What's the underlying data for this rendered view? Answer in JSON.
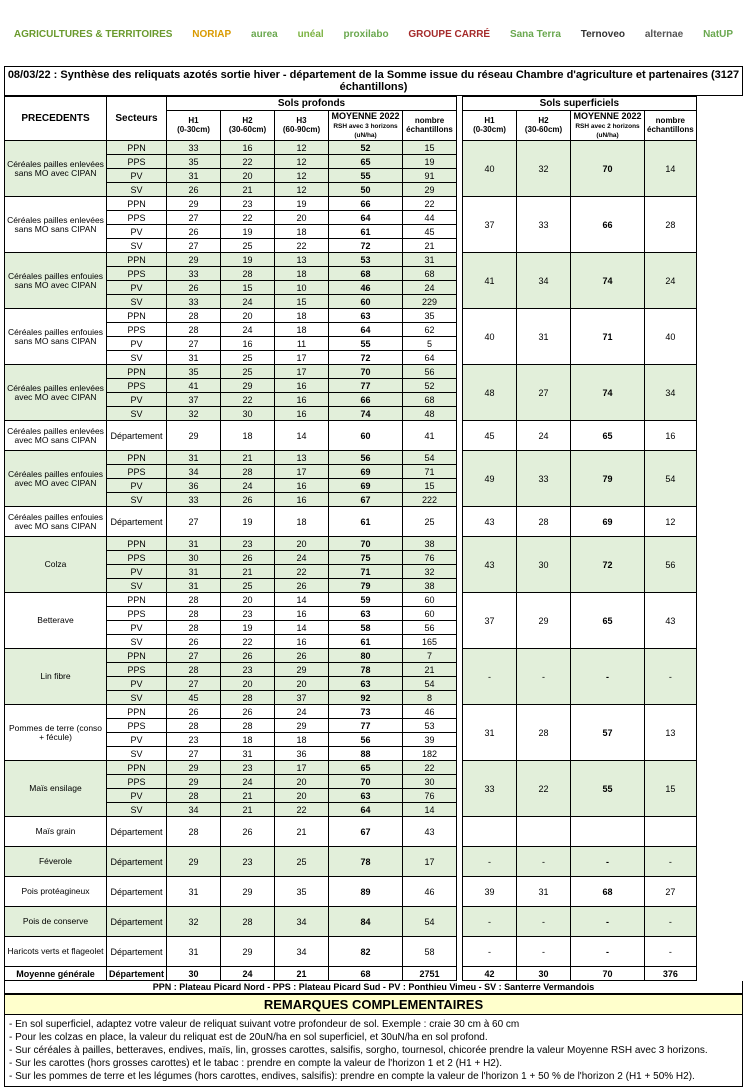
{
  "logos": [
    "AGRICULTURES & TERRITOIRES",
    "NORIAP",
    "aurea",
    "unéal",
    "proxilabo",
    "GROUPE CARRÉ",
    "Sana Terra",
    "Ternoveo",
    "alternae",
    "NatUP"
  ],
  "logo_colors": [
    "#6a9a2d",
    "#d99a00",
    "#6aa84f",
    "#7cb342",
    "#6aa84f",
    "#a52a2a",
    "#6aa84f",
    "#333",
    "#555",
    "#6aa84f"
  ],
  "title": "08/03/22 : Synthèse des reliquats azotés sortie hiver - département de la Somme issue du réseau Chambre d'agriculture et partenaires (3127 échantillons)",
  "headers": {
    "precedents": "PRECEDENTS",
    "secteurs": "Secteurs",
    "sols_profonds": "Sols profonds",
    "sols_superficiels": "Sols superficiels",
    "h1": "H1\n(0-30cm)",
    "h2": "H2\n(30-60cm)",
    "h3": "H3\n(60-90cm)",
    "moy3": "MOYENNE 2022",
    "moy3_sub": "RSH avec 3 horizons (uN/ha)",
    "moy2": "MOYENNE 2022",
    "moy2_sub": "RSH avec 2 horizons (uN/ha)",
    "nombre": "nombre échantillons"
  },
  "groups": [
    {
      "precedent": "Céréales pailles enlevées sans MO avec CIPAN",
      "shade": true,
      "rows": [
        {
          "s": "PPN",
          "h1": 33,
          "h2": 16,
          "h3": 12,
          "m": 52,
          "n": 15
        },
        {
          "s": "PPS",
          "h1": 35,
          "h2": 22,
          "h3": 12,
          "m": 65,
          "n": 19
        },
        {
          "s": "PV",
          "h1": 31,
          "h2": 20,
          "h3": 12,
          "m": 55,
          "n": 91
        },
        {
          "s": "SV",
          "h1": 26,
          "h2": 21,
          "h3": 12,
          "m": 50,
          "n": 29
        }
      ],
      "sup": {
        "h1": 40,
        "h2": 32,
        "m": 70,
        "n": 14
      }
    },
    {
      "precedent": "Céréales pailles enlevées sans MO sans CIPAN",
      "shade": false,
      "rows": [
        {
          "s": "PPN",
          "h1": 29,
          "h2": 23,
          "h3": 19,
          "m": 66,
          "n": 22
        },
        {
          "s": "PPS",
          "h1": 27,
          "h2": 22,
          "h3": 20,
          "m": 64,
          "n": 44
        },
        {
          "s": "PV",
          "h1": 26,
          "h2": 19,
          "h3": 18,
          "m": 61,
          "n": 45
        },
        {
          "s": "SV",
          "h1": 27,
          "h2": 25,
          "h3": 22,
          "m": 72,
          "n": 21
        }
      ],
      "sup": {
        "h1": 37,
        "h2": 33,
        "m": 66,
        "n": 28
      }
    },
    {
      "precedent": "Céréales pailles enfouies sans MO avec CIPAN",
      "shade": true,
      "rows": [
        {
          "s": "PPN",
          "h1": 29,
          "h2": 19,
          "h3": 13,
          "m": 53,
          "n": 31
        },
        {
          "s": "PPS",
          "h1": 33,
          "h2": 28,
          "h3": 18,
          "m": 68,
          "n": 68
        },
        {
          "s": "PV",
          "h1": 26,
          "h2": 15,
          "h3": 10,
          "m": 46,
          "n": 24
        },
        {
          "s": "SV",
          "h1": 33,
          "h2": 24,
          "h3": 15,
          "m": 60,
          "n": 229
        }
      ],
      "sup": {
        "h1": 41,
        "h2": 34,
        "m": 74,
        "n": 24
      }
    },
    {
      "precedent": "Céréales pailles enfouies sans MO sans CIPAN",
      "shade": false,
      "rows": [
        {
          "s": "PPN",
          "h1": 28,
          "h2": 20,
          "h3": 18,
          "m": 63,
          "n": 35
        },
        {
          "s": "PPS",
          "h1": 28,
          "h2": 24,
          "h3": 18,
          "m": 64,
          "n": 62
        },
        {
          "s": "PV",
          "h1": 27,
          "h2": 16,
          "h3": 11,
          "m": 55,
          "n": 5
        },
        {
          "s": "SV",
          "h1": 31,
          "h2": 25,
          "h3": 17,
          "m": 72,
          "n": 64
        }
      ],
      "sup": {
        "h1": 40,
        "h2": 31,
        "m": 71,
        "n": 40
      }
    },
    {
      "precedent": "Céréales pailles enlevées avec MO avec CIPAN",
      "shade": true,
      "rows": [
        {
          "s": "PPN",
          "h1": 35,
          "h2": 25,
          "h3": 17,
          "m": 70,
          "n": 56
        },
        {
          "s": "PPS",
          "h1": 41,
          "h2": 29,
          "h3": 16,
          "m": 77,
          "n": 52
        },
        {
          "s": "PV",
          "h1": 37,
          "h2": 22,
          "h3": 16,
          "m": 66,
          "n": 68
        },
        {
          "s": "SV",
          "h1": 32,
          "h2": 30,
          "h3": 16,
          "m": 74,
          "n": 48
        }
      ],
      "sup": {
        "h1": 48,
        "h2": 27,
        "m": 74,
        "n": 34
      }
    },
    {
      "precedent": "Céréales pailles enlevées avec MO sans CIPAN",
      "shade": false,
      "dept": true,
      "rows": [
        {
          "s": "Département",
          "h1": 29,
          "h2": 18,
          "h3": 14,
          "m": 60,
          "n": 41
        }
      ],
      "sup": {
        "h1": 45,
        "h2": 24,
        "m": 65,
        "n": 16
      }
    },
    {
      "precedent": "Céréales pailles enfouies avec MO avec CIPAN",
      "shade": true,
      "rows": [
        {
          "s": "PPN",
          "h1": 31,
          "h2": 21,
          "h3": 13,
          "m": 56,
          "n": 54
        },
        {
          "s": "PPS",
          "h1": 34,
          "h2": 28,
          "h3": 17,
          "m": 69,
          "n": 71
        },
        {
          "s": "PV",
          "h1": 36,
          "h2": 24,
          "h3": 16,
          "m": 69,
          "n": 15
        },
        {
          "s": "SV",
          "h1": 33,
          "h2": 26,
          "h3": 16,
          "m": 67,
          "n": 222
        }
      ],
      "sup": {
        "h1": 49,
        "h2": 33,
        "m": 79,
        "n": 54
      }
    },
    {
      "precedent": "Céréales pailles enfouies avec MO sans CIPAN",
      "shade": false,
      "dept": true,
      "rows": [
        {
          "s": "Département",
          "h1": 27,
          "h2": 19,
          "h3": 18,
          "m": 61,
          "n": 25
        }
      ],
      "sup": {
        "h1": 43,
        "h2": 28,
        "m": 69,
        "n": 12
      }
    },
    {
      "precedent": "Colza",
      "shade": true,
      "rows": [
        {
          "s": "PPN",
          "h1": 31,
          "h2": 23,
          "h3": 20,
          "m": 70,
          "n": 38
        },
        {
          "s": "PPS",
          "h1": 30,
          "h2": 26,
          "h3": 24,
          "m": 75,
          "n": 76
        },
        {
          "s": "PV",
          "h1": 31,
          "h2": 21,
          "h3": 22,
          "m": 71,
          "n": 32
        },
        {
          "s": "SV",
          "h1": 31,
          "h2": 25,
          "h3": 26,
          "m": 79,
          "n": 38
        }
      ],
      "sup": {
        "h1": 43,
        "h2": 30,
        "m": 72,
        "n": 56
      }
    },
    {
      "precedent": "Betterave",
      "shade": false,
      "rows": [
        {
          "s": "PPN",
          "h1": 28,
          "h2": 20,
          "h3": 14,
          "m": 59,
          "n": 60
        },
        {
          "s": "PPS",
          "h1": 28,
          "h2": 23,
          "h3": 16,
          "m": 63,
          "n": 60
        },
        {
          "s": "PV",
          "h1": 28,
          "h2": 19,
          "h3": 14,
          "m": 58,
          "n": 56
        },
        {
          "s": "SV",
          "h1": 26,
          "h2": 22,
          "h3": 16,
          "m": 61,
          "n": 165
        }
      ],
      "sup": {
        "h1": 37,
        "h2": 29,
        "m": 65,
        "n": 43
      }
    },
    {
      "precedent": "Lin fibre",
      "shade": true,
      "rows": [
        {
          "s": "PPN",
          "h1": 27,
          "h2": 26,
          "h3": 26,
          "m": 80,
          "n": 7
        },
        {
          "s": "PPS",
          "h1": 28,
          "h2": 23,
          "h3": 29,
          "m": 78,
          "n": 21
        },
        {
          "s": "PV",
          "h1": 27,
          "h2": 20,
          "h3": 20,
          "m": 63,
          "n": 54
        },
        {
          "s": "SV",
          "h1": 45,
          "h2": 28,
          "h3": 37,
          "m": 92,
          "n": 8
        }
      ],
      "sup": {
        "h1": "-",
        "h2": "-",
        "m": "-",
        "n": "-"
      }
    },
    {
      "precedent": "Pommes de terre (conso + fécule)",
      "shade": false,
      "rows": [
        {
          "s": "PPN",
          "h1": 26,
          "h2": 26,
          "h3": 24,
          "m": 73,
          "n": 46
        },
        {
          "s": "PPS",
          "h1": 28,
          "h2": 28,
          "h3": 29,
          "m": 77,
          "n": 53
        },
        {
          "s": "PV",
          "h1": 23,
          "h2": 18,
          "h3": 18,
          "m": 56,
          "n": 39
        },
        {
          "s": "SV",
          "h1": 27,
          "h2": 31,
          "h3": 36,
          "m": 88,
          "n": 182
        }
      ],
      "sup": {
        "h1": 31,
        "h2": 28,
        "m": 57,
        "n": 13
      }
    },
    {
      "precedent": "Maïs ensilage",
      "shade": true,
      "rows": [
        {
          "s": "PPN",
          "h1": 29,
          "h2": 23,
          "h3": 17,
          "m": 65,
          "n": 22
        },
        {
          "s": "PPS",
          "h1": 29,
          "h2": 24,
          "h3": 20,
          "m": 70,
          "n": 30
        },
        {
          "s": "PV",
          "h1": 28,
          "h2": 21,
          "h3": 20,
          "m": 63,
          "n": 76
        },
        {
          "s": "SV",
          "h1": 34,
          "h2": 21,
          "h3": 22,
          "m": 64,
          "n": 14
        }
      ],
      "sup": {
        "h1": 33,
        "h2": 22,
        "m": 55,
        "n": 15
      }
    },
    {
      "precedent": "Maïs grain",
      "shade": false,
      "dept": true,
      "rows": [
        {
          "s": "Département",
          "h1": 28,
          "h2": 26,
          "h3": 21,
          "m": 67,
          "n": 43
        }
      ],
      "sup": null
    },
    {
      "precedent": "Féverole",
      "shade": true,
      "dept": true,
      "rows": [
        {
          "s": "Département",
          "h1": 29,
          "h2": 23,
          "h3": 25,
          "m": 78,
          "n": 17
        }
      ],
      "sup": {
        "h1": "-",
        "h2": "-",
        "m": "-",
        "n": "-"
      }
    },
    {
      "precedent": "Pois protéagineux",
      "shade": false,
      "dept": true,
      "rows": [
        {
          "s": "Département",
          "h1": 31,
          "h2": 29,
          "h3": 35,
          "m": 89,
          "n": 46
        }
      ],
      "sup": {
        "h1": 39,
        "h2": 31,
        "m": 68,
        "n": 27
      }
    },
    {
      "precedent": "Pois de conserve",
      "shade": true,
      "dept": true,
      "rows": [
        {
          "s": "Département",
          "h1": 32,
          "h2": 28,
          "h3": 34,
          "m": 84,
          "n": 54
        }
      ],
      "sup": {
        "h1": "-",
        "h2": "-",
        "m": "-",
        "n": "-"
      }
    },
    {
      "precedent": "Haricots verts et flageolet",
      "shade": false,
      "dept": true,
      "rows": [
        {
          "s": "Département",
          "h1": 31,
          "h2": 29,
          "h3": 34,
          "m": 82,
          "n": 58
        }
      ],
      "sup": {
        "h1": "-",
        "h2": "-",
        "m": "-",
        "n": "-"
      }
    }
  ],
  "average": {
    "label": "Moyenne générale",
    "s": "Département",
    "h1": 30,
    "h2": 24,
    "h3": 21,
    "m": 68,
    "n": 2751,
    "sup": {
      "h1": 42,
      "h2": 30,
      "m": 70,
      "n": 376
    }
  },
  "legend": "PPN : Plateau Picard Nord - PPS : Plateau Picard Sud - PV : Ponthieu Vimeu - SV : Santerre Vermandois",
  "remarks_title": "REMARQUES COMPLEMENTAIRES",
  "remarks": [
    "- En sol superficiel, adaptez votre valeur de reliquat suivant votre profondeur de sol. Exemple : craie 30 cm à 60 cm",
    "- Pour les colzas en place, la valeur du reliquat est de 20uN/ha en sol superficiel, et 30uN/ha en sol profond.",
    "- Sur céréales à pailles, betteraves, endives, maïs, lin, grosses carottes, salsifis, sorgho, tournesol, chicorée prendre la valeur Moyenne RSH avec 3 horizons.",
    "- Sur les carottes (hors grosses carottes) et le tabac : prendre en compte la valeur de l'horizon 1 et 2 (H1 + H2).",
    "- Sur les pommes de terre et les légumes (hors carottes, endives, salsifis): prendre en compte la valeur de l'horizon 1 + 50 % de l'horizon 2 (H1 + 50% H2)."
  ],
  "colors": {
    "shade": "#e2efda",
    "remarks_bg": "#ffffcc"
  }
}
